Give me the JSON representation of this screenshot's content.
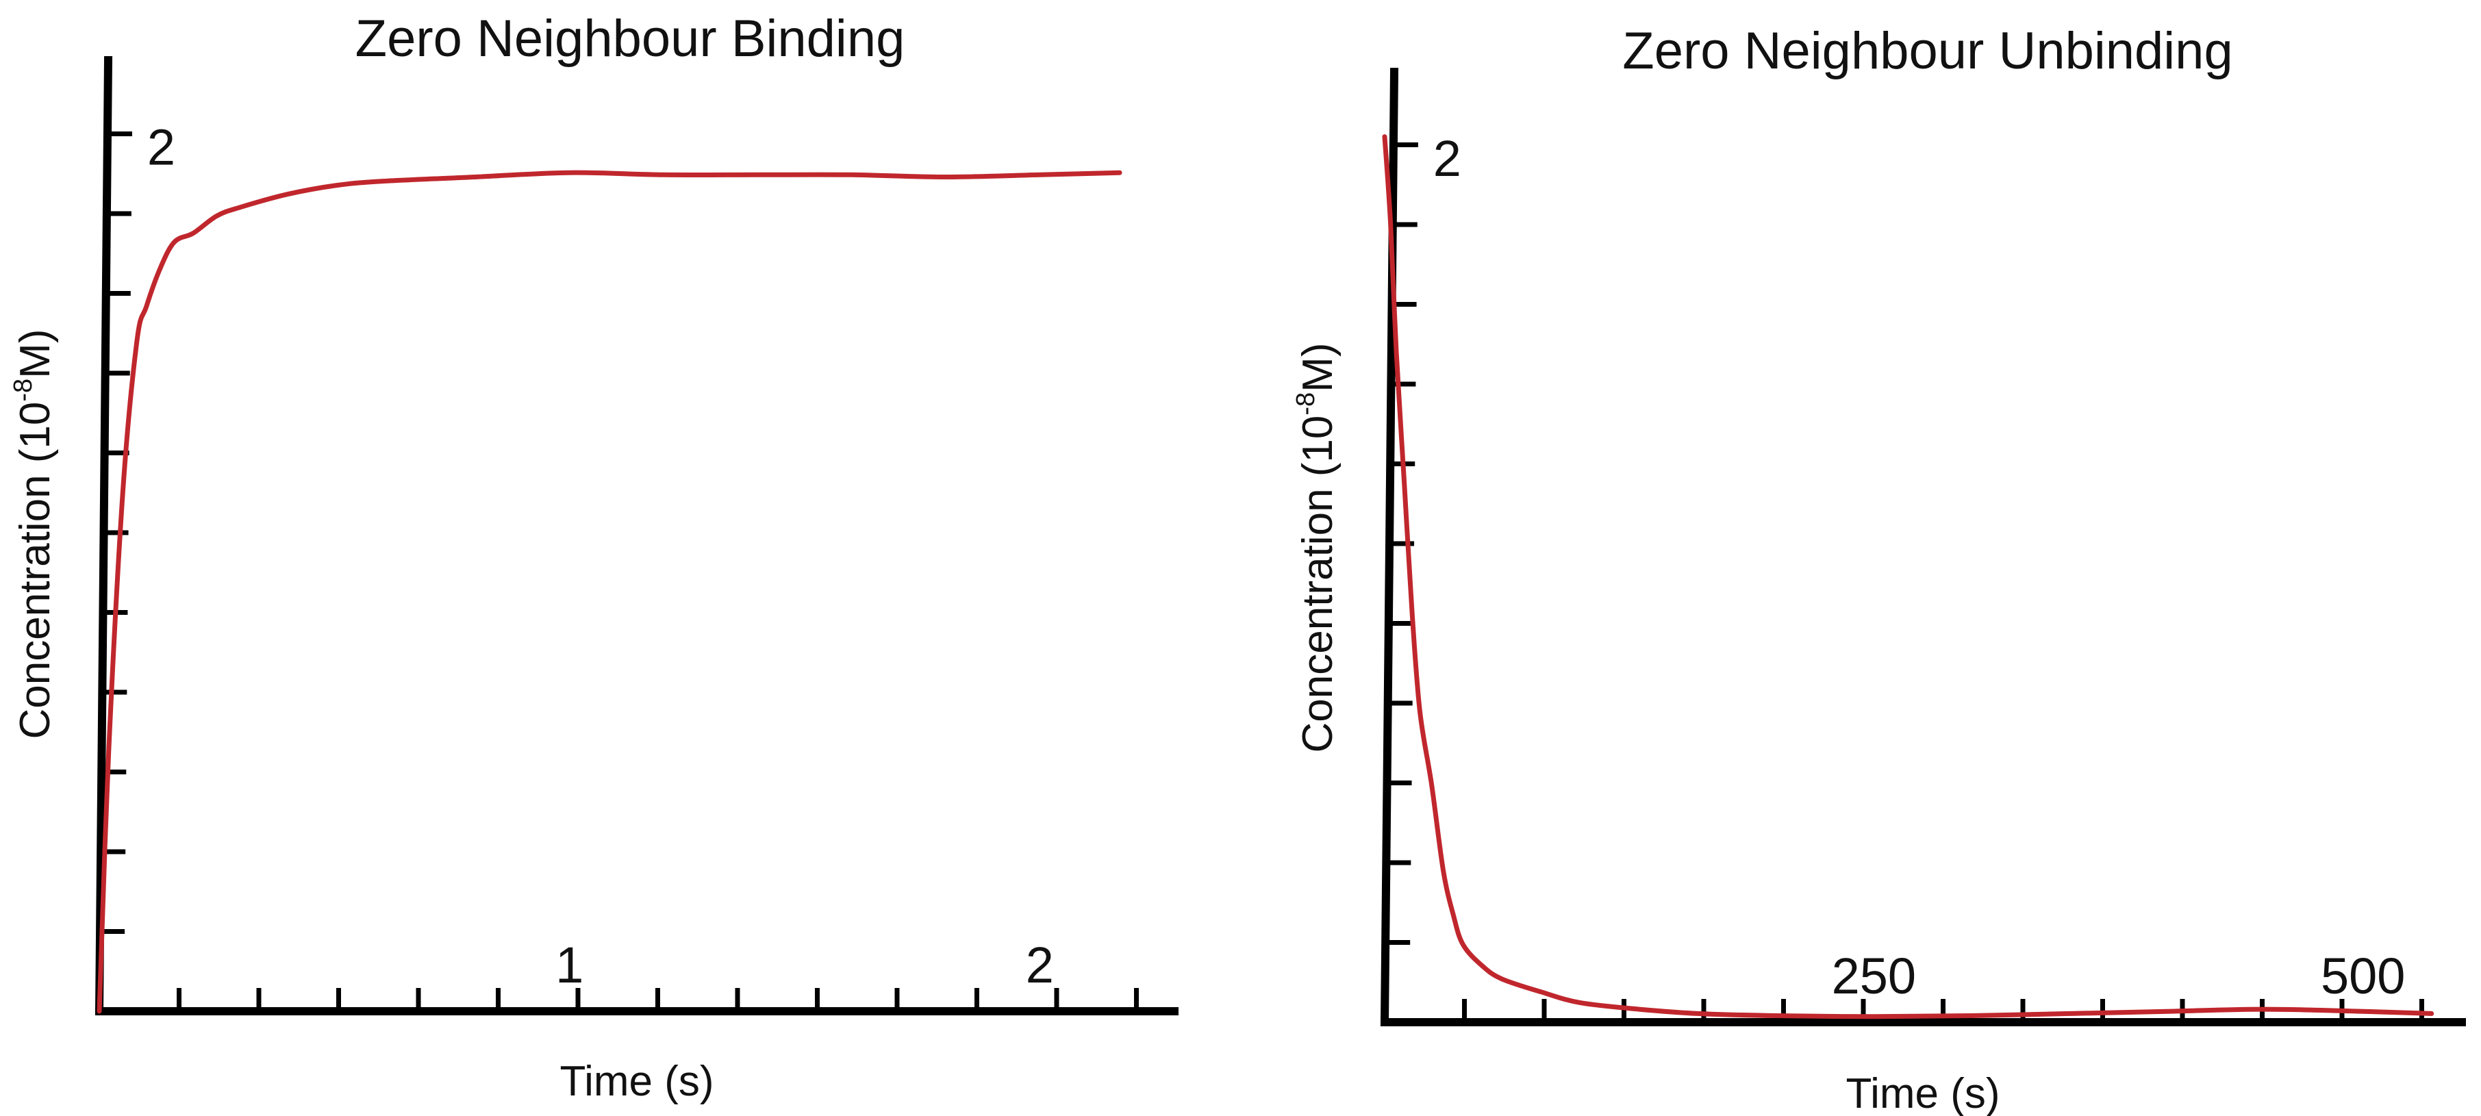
{
  "colors": {
    "axis": "#000000",
    "curve": "#c0272d",
    "background": "#ffffff"
  },
  "chart_data": [
    {
      "type": "line",
      "title": "Zero Neighbour Binding",
      "xlabel": "Time (s)",
      "ylabel_main": "Concentration (10",
      "ylabel_sup": "-8",
      "ylabel_tail": "M)",
      "xlim": [
        0,
        2.25
      ],
      "ylim": [
        0,
        2.2
      ],
      "x_minor_ticks": 13,
      "y_minor_ticks": 11,
      "x_tick_labels": [
        {
          "value": 1,
          "label": "1"
        },
        {
          "value": 2,
          "label": "2"
        }
      ],
      "y_tick_labels": [
        {
          "value": 2,
          "label": "2"
        }
      ],
      "series": [
        {
          "x": [
            0,
            0.02,
            0.05,
            0.08,
            0.1,
            0.13,
            0.16,
            0.2,
            0.25,
            0.3,
            0.4,
            0.5,
            0.6,
            0.8,
            1.0,
            1.2,
            1.4,
            1.6,
            1.8,
            2.0,
            2.17
          ],
          "y": [
            0,
            0.6,
            1.2,
            1.55,
            1.63,
            1.72,
            1.78,
            1.8,
            1.84,
            1.86,
            1.89,
            1.91,
            1.92,
            1.93,
            1.94,
            1.935,
            1.935,
            1.935,
            1.93,
            1.935,
            1.94
          ]
        }
      ]
    },
    {
      "type": "line",
      "title": "Zero Neighbour Unbinding",
      "xlabel": "Time (s)",
      "ylabel_main": "Concentration (10",
      "ylabel_sup": "-8",
      "ylabel_tail": "M)",
      "xlim": [
        0,
        540
      ],
      "ylim": [
        0,
        2.2
      ],
      "x_minor_ticks": 13,
      "y_minor_ticks": 11,
      "x_tick_labels": [
        {
          "value": 250,
          "label": "250"
        },
        {
          "value": 500,
          "label": "500"
        }
      ],
      "y_tick_labels": [
        {
          "value": 2,
          "label": "2"
        }
      ],
      "series": [
        {
          "x": [
            0,
            3,
            6,
            10,
            14,
            18,
            24,
            30,
            35,
            40,
            50,
            60,
            80,
            100,
            130,
            160,
            200,
            250,
            300,
            350,
            400,
            450,
            500,
            535
          ],
          "y": [
            2.05,
            1.85,
            1.55,
            1.25,
            0.95,
            0.72,
            0.55,
            0.35,
            0.25,
            0.18,
            0.13,
            0.1,
            0.07,
            0.045,
            0.03,
            0.02,
            0.015,
            0.013,
            0.015,
            0.02,
            0.025,
            0.03,
            0.025,
            0.02
          ]
        }
      ]
    }
  ]
}
